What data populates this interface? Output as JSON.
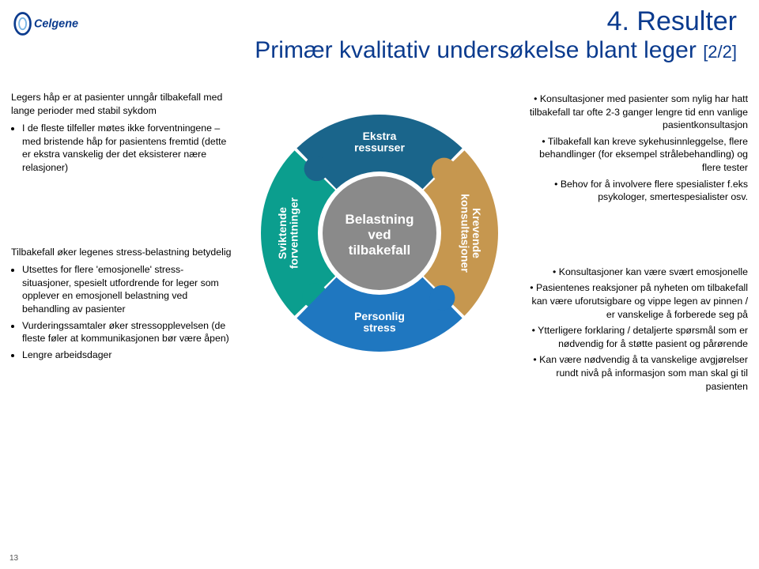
{
  "logo_text": "Celgene",
  "title_line1": "4. Resulter",
  "title_line2": "Primær kvalitativ undersøkelse blant leger ",
  "title_suffix": "[2/2]",
  "page_number": "13",
  "left_block1_header": "Legers håp er at pasienter unngår tilbakefall med lange perioder med stabil sykdom",
  "left_block1_items": [
    "I de fleste tilfeller møtes ikke forventningene – med bristende håp for pasientens fremtid (dette er ekstra vanskelig der det eksisterer nære relasjoner)"
  ],
  "left_block2_header": "Tilbakefall øker legenes stress-belastning betydelig",
  "left_block2_items": [
    "Utsettes for flere 'emosjonelle' stress-situasjoner, spesielt utfordrende for leger som opplever en emosjonell belastning ved behandling av pasienter",
    "Vurderingssamtaler øker stressopplevelsen (de fleste føler at kommunikasjonen bør være åpen)",
    "Lengre arbeidsdager"
  ],
  "right_block1_items": [
    "Konsultasjoner med pasienter som nylig har hatt tilbakefall tar ofte 2-3 ganger lengre tid enn vanlige pasientkonsultasjon",
    "Tilbakefall kan kreve sykehusinnleggelse, flere behandlinger (for eksempel strålebehandling) og flere tester",
    "Behov for å involvere flere spesialister f.eks psykologer, smertespesialister osv."
  ],
  "right_block2_items": [
    "Konsultasjoner kan være svært emosjonelle",
    "Pasientenes reaksjoner på nyheten om tilbakefall kan være uforutsigbare og vippe legen av pinnen / er vanskelige å forberede seg på",
    "Ytterligere forklaring / detaljerte spørsmål som er nødvendig for å støtte pasient og pårørende",
    "Kan være nødvendig å ta vanskelige avgjørelser rundt nivå på informasjon som man skal gi til pasienten"
  ],
  "diagram": {
    "type": "ring-puzzle",
    "center_label": [
      "Belastning",
      "ved",
      "tilbakefall"
    ],
    "center_color": "#8a8a8a",
    "center_fontsize": 17,
    "outer_radius": 150,
    "inner_radius": 78,
    "segments": [
      {
        "label_lines": [
          "Sviktende",
          "forventninger"
        ],
        "start_deg": 135,
        "end_deg": 225,
        "color": "#0b9e8e"
      },
      {
        "label_lines": [
          "Ekstra",
          "ressurser"
        ],
        "start_deg": 45,
        "end_deg": 135,
        "color": "#1a658b"
      },
      {
        "label_lines": [
          "Krevende",
          "konsultasjoner"
        ],
        "start_deg": 315,
        "end_deg": 45,
        "color": "#c6974f"
      },
      {
        "label_lines": [
          "Personlig",
          "stress"
        ],
        "start_deg": 225,
        "end_deg": 315,
        "color": "#1f77c0"
      }
    ],
    "segment_fontsize": 14,
    "segment_font_color": "#ffffff",
    "gap_deg": 1.5
  }
}
